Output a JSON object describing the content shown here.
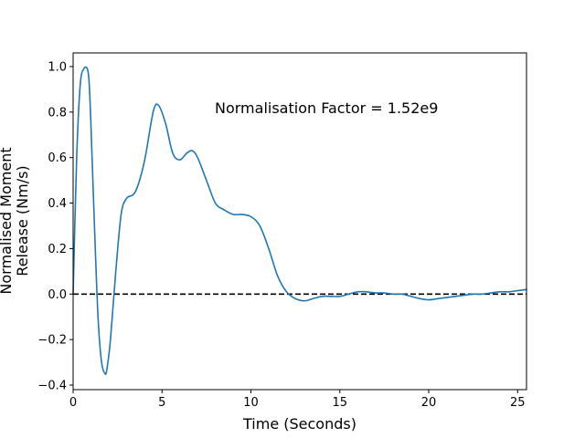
{
  "chart_data": {
    "type": "line",
    "xlabel": "Time (Seconds)",
    "ylabel_lines": [
      "Normalised Moment",
      "Release (Nm/s)"
    ],
    "annotation": "Normalisation Factor = 1.52e9",
    "xlim": [
      0,
      25.5
    ],
    "ylim": [
      -0.42,
      1.06
    ],
    "x_ticks": [
      0,
      5,
      10,
      15,
      20,
      25
    ],
    "y_ticks": [
      -0.4,
      -0.2,
      0.0,
      0.2,
      0.4,
      0.6,
      0.8,
      1.0
    ],
    "x_tick_labels": [
      "0",
      "5",
      "10",
      "15",
      "20",
      "25"
    ],
    "y_tick_labels": [
      "−0.4",
      "−0.2",
      "0.0",
      "0.2",
      "0.4",
      "0.6",
      "0.8",
      "1.0"
    ],
    "reference_line": {
      "y": 0.0,
      "style": "dashed",
      "color": "#000000"
    },
    "grid": false,
    "series": [
      {
        "color": "#1f77b4",
        "x": [
          0,
          0.2,
          0.4,
          0.6,
          0.8,
          0.9,
          1.0,
          1.2,
          1.4,
          1.6,
          1.8,
          1.9,
          2.1,
          2.4,
          2.7,
          3.0,
          3.5,
          4.0,
          4.5,
          4.8,
          5.2,
          5.6,
          6.0,
          6.4,
          6.7,
          7.0,
          7.5,
          8.0,
          8.5,
          9.0,
          9.5,
          10.0,
          10.5,
          11.0,
          11.5,
          12.0,
          12.5,
          13.0,
          13.5,
          14.0,
          14.5,
          15.0,
          15.5,
          16.0,
          16.5,
          17.0,
          17.5,
          18.0,
          18.5,
          19.0,
          19.5,
          20.0,
          20.5,
          21.0,
          21.5,
          22.0,
          22.5,
          23.0,
          23.5,
          24.0,
          24.5,
          25.0,
          25.5
        ],
        "y": [
          0.0,
          0.6,
          0.92,
          0.99,
          0.99,
          0.93,
          0.75,
          0.3,
          -0.1,
          -0.3,
          -0.35,
          -0.33,
          -0.2,
          0.1,
          0.35,
          0.42,
          0.45,
          0.58,
          0.8,
          0.83,
          0.75,
          0.62,
          0.59,
          0.62,
          0.63,
          0.6,
          0.5,
          0.4,
          0.37,
          0.35,
          0.35,
          0.34,
          0.3,
          0.2,
          0.08,
          0.01,
          -0.02,
          -0.03,
          -0.02,
          -0.01,
          -0.01,
          -0.01,
          0.0,
          0.01,
          0.01,
          0.005,
          0.005,
          0.0,
          0.0,
          -0.01,
          -0.02,
          -0.025,
          -0.02,
          -0.015,
          -0.01,
          -0.005,
          0.0,
          0.0,
          0.005,
          0.01,
          0.01,
          0.015,
          0.02
        ]
      }
    ]
  }
}
